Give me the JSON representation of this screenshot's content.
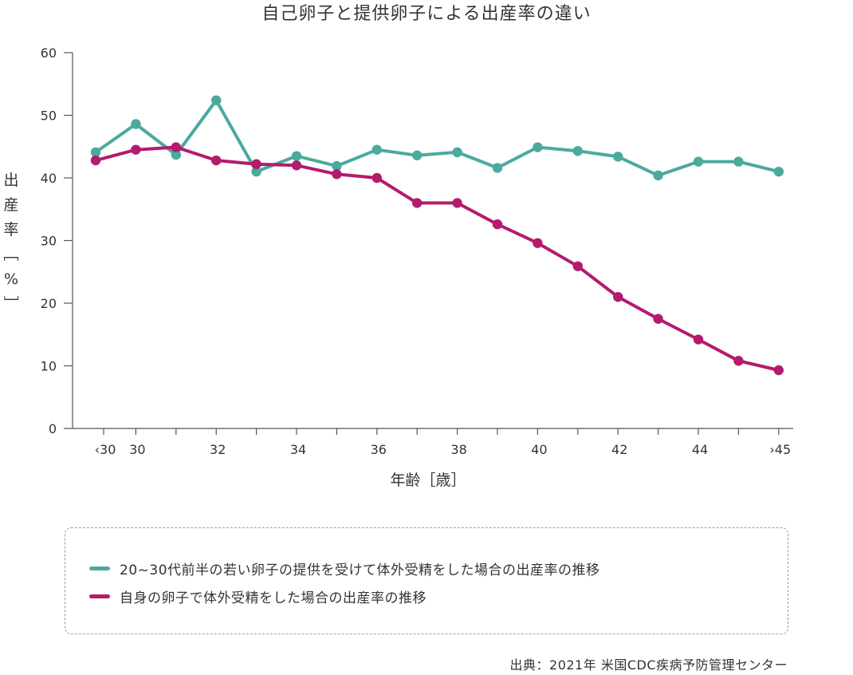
{
  "chart_data": {
    "type": "line",
    "title": "自己卵子と提供卵子による出産率の違い",
    "xlabel": "年齢［歳］",
    "ylabel": "出産率［%］",
    "ylim": [
      0,
      60
    ],
    "yticks": [
      0,
      10,
      20,
      30,
      40,
      50,
      60
    ],
    "x": [
      "<30",
      "30",
      "31",
      "32",
      "33",
      "34",
      "35",
      "36",
      "37",
      "38",
      "39",
      "40",
      "41",
      "42",
      "43",
      "44",
      "45",
      ">45"
    ],
    "xtick_labels": [
      {
        "index": 0,
        "label": "‹30"
      },
      {
        "index": 1,
        "label": "30"
      },
      {
        "index": 3,
        "label": "32"
      },
      {
        "index": 5,
        "label": "34"
      },
      {
        "index": 7,
        "label": "36"
      },
      {
        "index": 9,
        "label": "38"
      },
      {
        "index": 11,
        "label": "40"
      },
      {
        "index": 13,
        "label": "42"
      },
      {
        "index": 15,
        "label": "44"
      },
      {
        "index": 17,
        "label": "›45"
      }
    ],
    "series": [
      {
        "name": "20~30代前半の若い卵子の提供を受けて体外受精をした場合の出産率の推移",
        "color": "#4aaa9e",
        "values": [
          44.1,
          48.6,
          43.7,
          52.4,
          41.0,
          43.5,
          41.9,
          44.5,
          43.6,
          44.1,
          41.6,
          44.9,
          44.3,
          43.4,
          40.4,
          42.6,
          42.6,
          41.0
        ]
      },
      {
        "name": "自身の卵子で体外受精をした場合の出産率の推移",
        "color": "#b31b6d",
        "values": [
          42.8,
          44.5,
          44.9,
          42.8,
          42.2,
          42.0,
          40.6,
          40.0,
          36.0,
          36.0,
          32.6,
          29.6,
          25.9,
          21.0,
          17.5,
          14.2,
          10.8,
          9.3
        ]
      }
    ],
    "legend": "bottom",
    "grid": false
  },
  "source": "出典：2021年 米国CDC疾病予防管理センター"
}
